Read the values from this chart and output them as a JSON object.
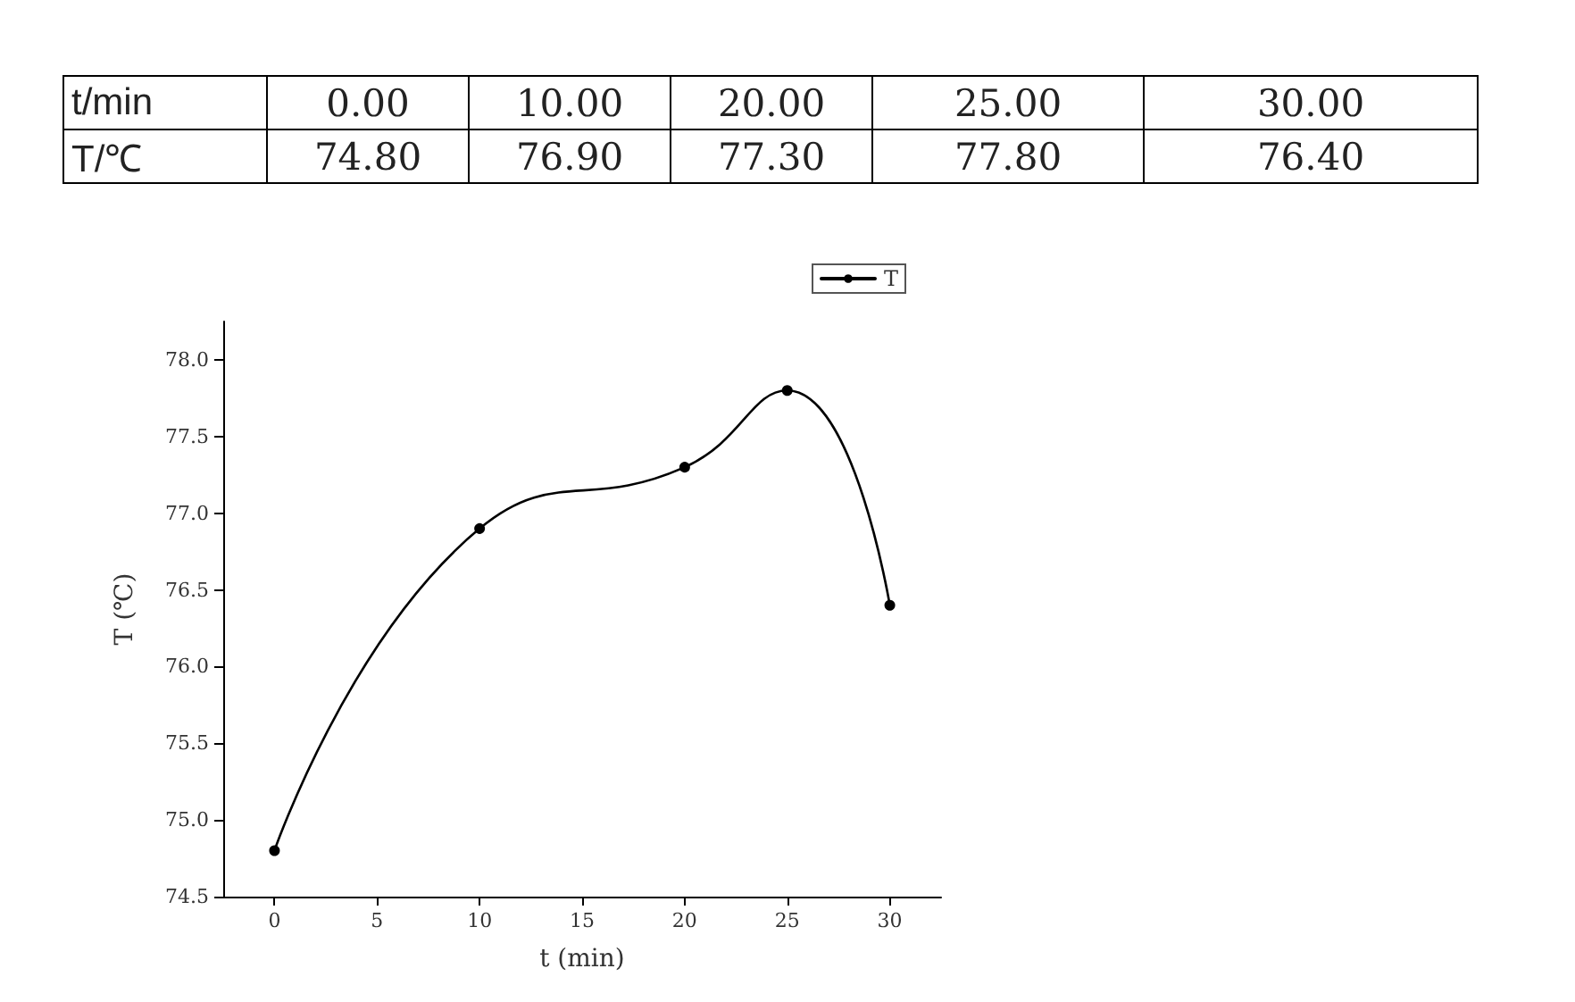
{
  "chart_data": {
    "type": "line",
    "xlabel": "t (min)",
    "ylabel": "T (℃)",
    "annotations": [
      "t/min",
      "0.00",
      "10.00",
      "20.00",
      "25.00",
      "30.00",
      "T/℃",
      "74.80",
      "76.90",
      "77.30",
      "77.80",
      "76.40"
    ],
    "x": [
      0,
      10,
      20,
      25,
      30
    ],
    "series": [
      {
        "name": "T",
        "color": "#000000",
        "values": [
          74.8,
          76.9,
          77.3,
          77.8,
          76.4
        ]
      }
    ],
    "xlim": [
      -2.5,
      32.5
    ],
    "xticks": [
      0,
      5,
      10,
      15,
      20,
      25,
      30
    ],
    "ylim": [
      74.5,
      78.25
    ],
    "yticks": [
      {
        "value": 74.5,
        "label": "74.5"
      },
      {
        "value": 75,
        "label": "75.0"
      },
      {
        "value": 75.5,
        "label": "75.5"
      },
      {
        "value": 76,
        "label": "76.0"
      },
      {
        "value": 76.5,
        "label": "76.5"
      },
      {
        "value": 77,
        "label": "77.0"
      },
      {
        "value": 77.5,
        "label": "77.5"
      },
      {
        "value": 78,
        "label": "78.0"
      }
    ],
    "grid": false,
    "legend": "top right",
    "marker": "circle",
    "line_style": "solid"
  }
}
